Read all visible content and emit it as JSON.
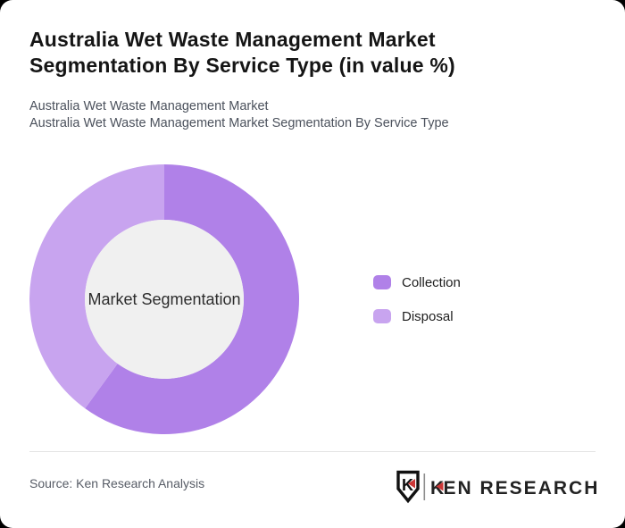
{
  "header": {
    "title": "Australia Wet Waste Management Market Segmentation By Service Type (in value %)",
    "subtitle_line1": "Australia Wet Waste Management Market",
    "subtitle_line2": "Australia Wet Waste Management Market Segmentation By Service Type"
  },
  "chart_data": {
    "type": "pie",
    "variant": "donut",
    "title": "Australia Wet Waste Management Market Segmentation By Service Type (in value %)",
    "center_label": "Market Segmentation",
    "categories": [
      "Collection",
      "Disposal"
    ],
    "values": [
      60,
      40
    ],
    "unit": "% of value",
    "colors": [
      "#b081e8",
      "#c8a4ef"
    ],
    "hole_color": "#f0f0f0",
    "inner_radius_ratio": 0.59,
    "start_angle_deg": 0,
    "legend_position": "right"
  },
  "legend": {
    "items": [
      {
        "label": "Collection",
        "color": "#b081e8"
      },
      {
        "label": "Disposal",
        "color": "#c8a4ef"
      }
    ]
  },
  "footer": {
    "source": "Source: Ken Research Analysis",
    "logo": {
      "icon_letter": "K",
      "brand_first_letter": "K",
      "brand_rest": "EN RESEARCH",
      "accent_color": "#cb3737",
      "text_color": "#222222"
    }
  }
}
